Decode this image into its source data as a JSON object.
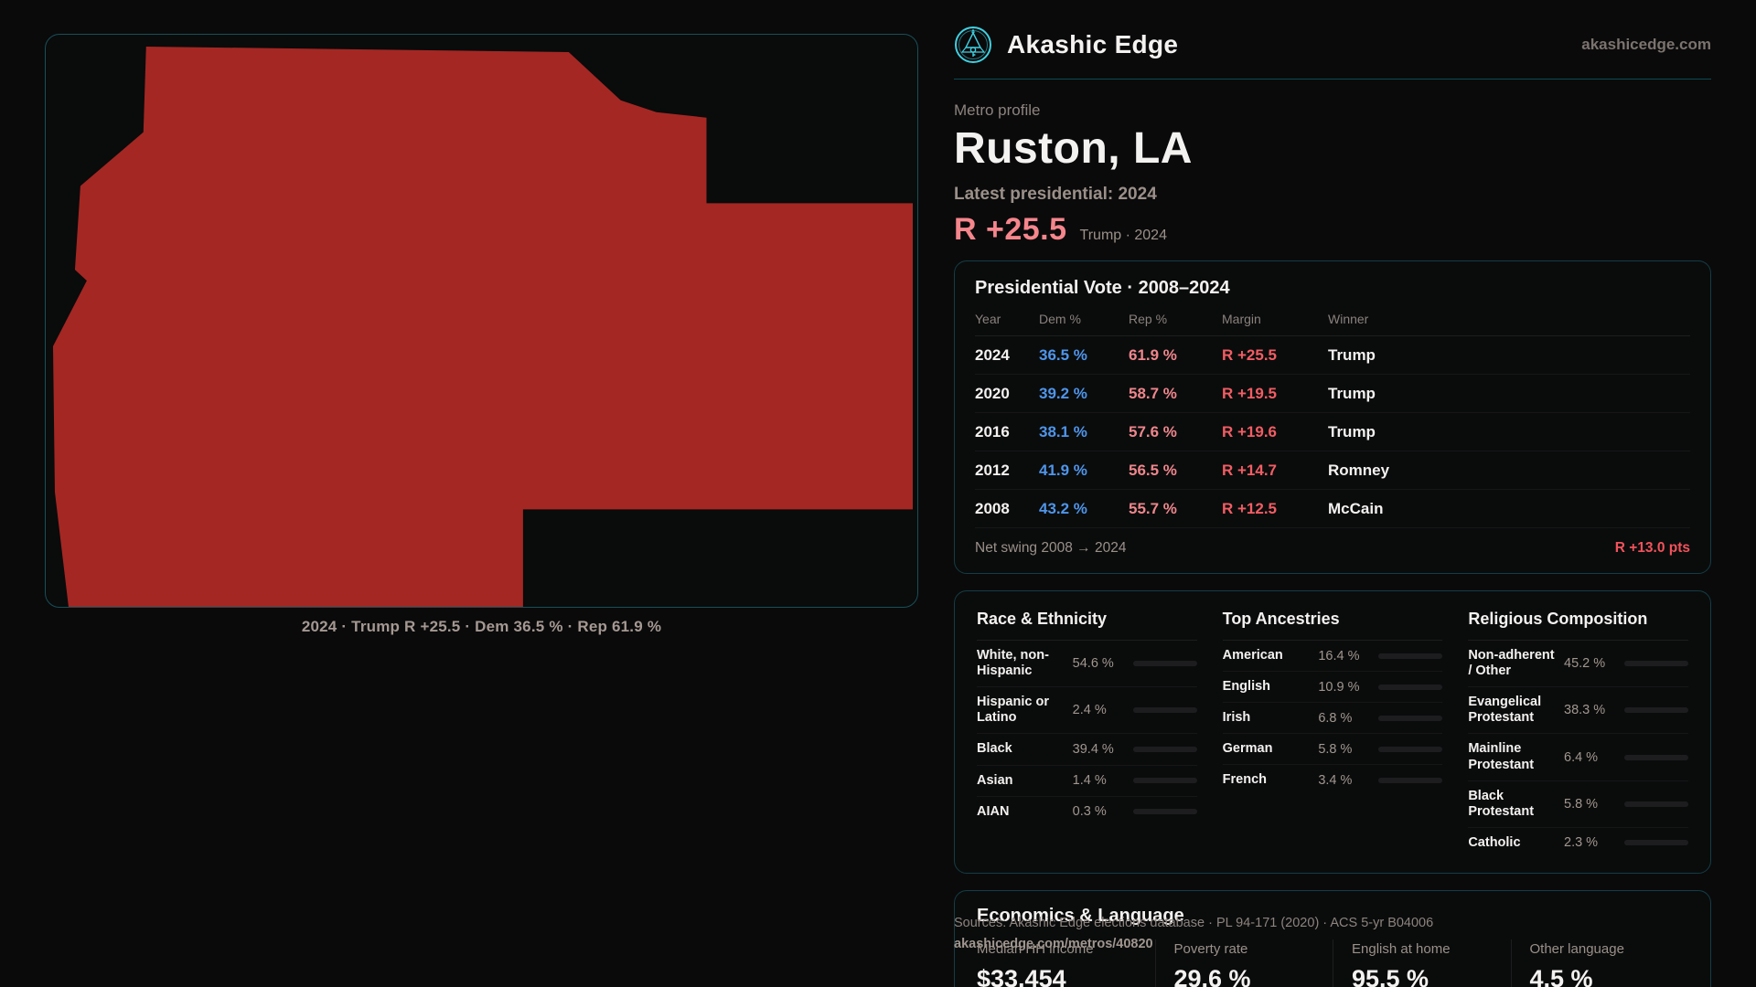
{
  "brand": {
    "name": "Akashic Edge",
    "url": "akashicedge.com",
    "accent_teal": "#3fd0e0"
  },
  "profile": {
    "eyebrow": "Metro profile",
    "title": "Ruston, LA",
    "latest_label": "Latest presidential: 2024",
    "margin_big": "R +25.5",
    "margin_context": "Trump · 2024",
    "margin_color": "#f5868c"
  },
  "map": {
    "caption": "2024 · Trump R +25.5 · Dem 36.5 % · Rep 61.9 %",
    "fill_color": "#a42723"
  },
  "vote_table": {
    "title": "Presidential Vote · 2008–2024",
    "columns": {
      "year": "Year",
      "dem": "Dem %",
      "rep": "Rep %",
      "margin": "Margin",
      "winner": "Winner"
    },
    "rows": [
      {
        "year": "2024",
        "dem": "36.5 %",
        "rep": "61.9 %",
        "margin": "R +25.5",
        "winner": "Trump"
      },
      {
        "year": "2020",
        "dem": "39.2 %",
        "rep": "58.7 %",
        "margin": "R +19.5",
        "winner": "Trump"
      },
      {
        "year": "2016",
        "dem": "38.1 %",
        "rep": "57.6 %",
        "margin": "R +19.6",
        "winner": "Trump"
      },
      {
        "year": "2012",
        "dem": "41.9 %",
        "rep": "56.5 %",
        "margin": "R +14.7",
        "winner": "Romney"
      },
      {
        "year": "2008",
        "dem": "43.2 %",
        "rep": "55.7 %",
        "margin": "R +12.5",
        "winner": "McCain"
      }
    ],
    "footer_label": "Net swing 2008 → 2024",
    "footer_value": "R +13.0 pts",
    "dem_color": "#4f95ea",
    "rep_color": "#ef868c",
    "margin_color": "#f25d64"
  },
  "race": {
    "title": "Race & Ethnicity",
    "rows": [
      {
        "label": "White, non-Hispanic",
        "value": "54.6 %",
        "pct": 54.6,
        "color": "#93a2bd"
      },
      {
        "label": "Hispanic or Latino",
        "value": "2.4 %",
        "pct": 2.4,
        "color": "#e8a23f"
      },
      {
        "label": "Black",
        "value": "39.4 %",
        "pct": 39.4,
        "color": "#8f7ce8"
      },
      {
        "label": "Asian",
        "value": "1.4 %",
        "pct": 1.4,
        "color": "#2ec49a"
      },
      {
        "label": "AIAN",
        "value": "0.3 %",
        "pct": 0.3,
        "color": "#6d6d72"
      }
    ]
  },
  "ancestries": {
    "title": "Top Ancestries",
    "rows": [
      {
        "label": "American",
        "value": "16.4 %",
        "pct": 16.4,
        "color": "#a9c0d8"
      },
      {
        "label": "English",
        "value": "10.9 %",
        "pct": 10.9,
        "color": "#a9c0d8"
      },
      {
        "label": "Irish",
        "value": "6.8 %",
        "pct": 6.8,
        "color": "#a9c0d8"
      },
      {
        "label": "German",
        "value": "5.8 %",
        "pct": 5.8,
        "color": "#a9c0d8"
      },
      {
        "label": "French",
        "value": "3.4 %",
        "pct": 3.4,
        "color": "#a9c0d8"
      }
    ]
  },
  "religion": {
    "title": "Religious Composition",
    "rows": [
      {
        "label": "Non-adherent / Other",
        "value": "45.2 %",
        "pct": 45.2,
        "color": "#7d8aa3"
      },
      {
        "label": "Evangelical Protestant",
        "value": "38.3 %",
        "pct": 38.3,
        "color": "#e2626b"
      },
      {
        "label": "Mainline Protestant",
        "value": "6.4 %",
        "pct": 6.4,
        "color": "#4a86e8"
      },
      {
        "label": "Black Protestant",
        "value": "5.8 %",
        "pct": 5.8,
        "color": "#9b7ce8"
      },
      {
        "label": "Catholic",
        "value": "2.3 %",
        "pct": 2.3,
        "color": "#e3b441"
      }
    ]
  },
  "economics": {
    "title": "Economics & Language",
    "stats": [
      {
        "label": "Median HH income",
        "value": "$33,454"
      },
      {
        "label": "Poverty rate",
        "value": "29.6 %"
      },
      {
        "label": "English at home",
        "value": "95.5 %"
      },
      {
        "label": "Other language",
        "value": "4.5 %"
      }
    ]
  },
  "sources": {
    "line1": "Sources: Akashic Edge elections database · PL 94-171 (2020) · ACS 5-yr B04006",
    "line2": "akashicedge.com/metros/40820"
  }
}
